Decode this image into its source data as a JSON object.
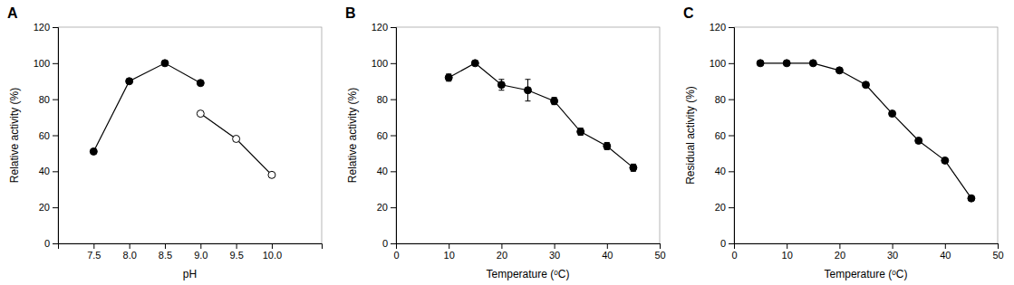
{
  "chart_data": [
    {
      "type": "line",
      "title": "A",
      "xlabel": "pH",
      "ylabel": "Relative activity (%)",
      "series": [
        {
          "x": [
            7.5,
            8.0,
            8.5,
            9.0
          ],
          "values": [
            51,
            90,
            100,
            89
          ],
          "color": "black",
          "marker": "circle",
          "line_style": "solid"
        },
        {
          "x": [
            9.0,
            9.5,
            10.0
          ],
          "values": [
            72,
            58,
            38
          ],
          "color": "black",
          "marker": "open-circle",
          "line_style": "solid"
        }
      ],
      "xlim": [
        7.0,
        10.7
      ],
      "ylim": [
        0,
        120
      ],
      "xticks": [
        7.5,
        {
          "value": 8.0,
          "label": "8.0"
        },
        8.5,
        {
          "value": 9.0,
          "label": "9.0"
        },
        9.5,
        {
          "value": 10.0,
          "label": "10.0"
        }
      ],
      "yticks": [
        0,
        20,
        40,
        60,
        80,
        100,
        120
      ],
      "grid": false
    },
    {
      "type": "line",
      "title": "B",
      "xlabel": "Temperature (ᵒC)",
      "ylabel": "Relative activity (%)",
      "series": [
        {
          "x": [
            10,
            15,
            20,
            25,
            30,
            35,
            40,
            45
          ],
          "values": [
            92,
            100,
            88,
            85,
            79,
            62,
            54,
            42
          ],
          "errors": [
            2,
            1,
            3,
            6,
            2,
            2,
            2,
            2
          ],
          "color": "black",
          "marker": "circle",
          "line_style": "solid"
        }
      ],
      "xlim": [
        0,
        50
      ],
      "ylim": [
        0,
        120
      ],
      "xticks": [
        0,
        10,
        20,
        30,
        40,
        50
      ],
      "yticks": [
        0,
        20,
        40,
        60,
        80,
        100,
        120
      ],
      "grid": false
    },
    {
      "type": "line",
      "title": "C",
      "xlabel": "Temperature (ᵒC)",
      "ylabel": "Residual activity (%)",
      "series": [
        {
          "x": [
            5,
            10,
            15,
            20,
            25,
            30,
            35,
            40,
            45
          ],
          "values": [
            100,
            100,
            100,
            96,
            88,
            72,
            57,
            46,
            25
          ],
          "color": "black",
          "marker": "circle",
          "line_style": "solid"
        }
      ],
      "xlim": [
        0,
        50
      ],
      "ylim": [
        0,
        120
      ],
      "xticks": [
        0,
        10,
        20,
        30,
        40,
        50
      ],
      "yticks": [
        0,
        20,
        40,
        60,
        80,
        100,
        120
      ],
      "grid": false
    }
  ]
}
